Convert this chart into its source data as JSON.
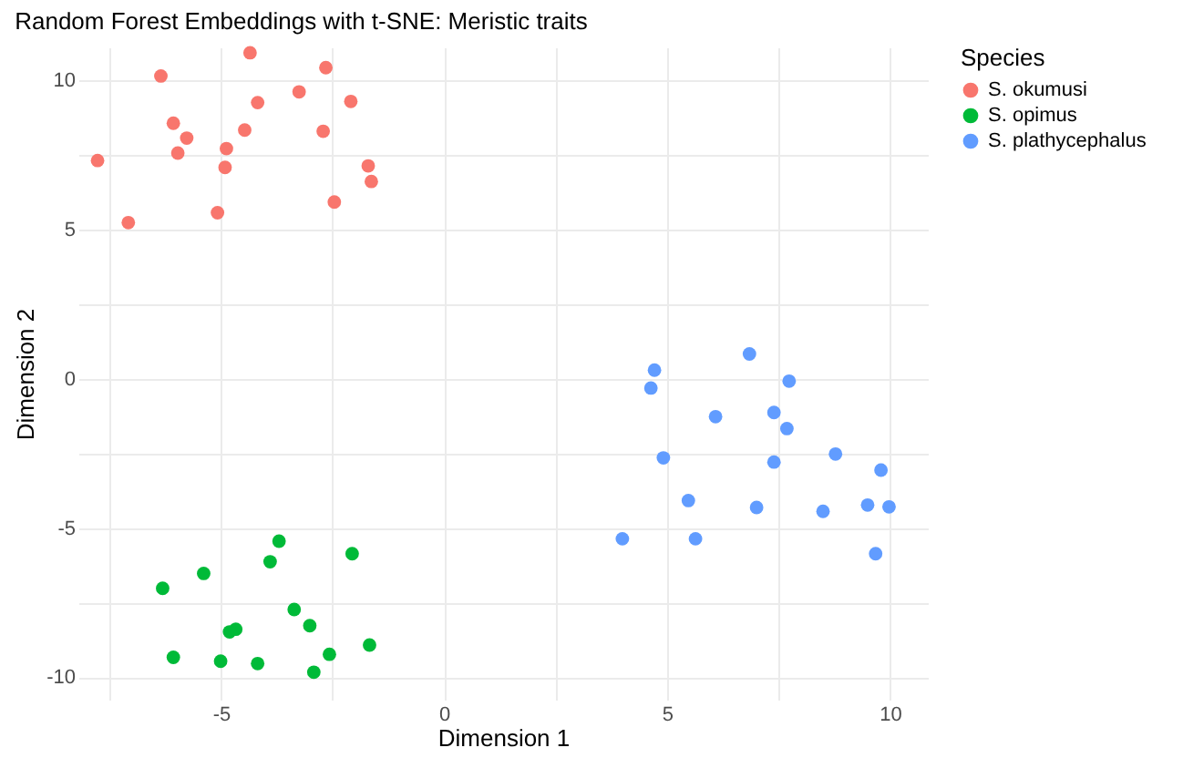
{
  "chart_data": {
    "type": "scatter",
    "title": "Random Forest Embeddings with t-SNE: Meristic traits",
    "xlabel": "Dimension 1",
    "ylabel": "Dimension 2",
    "legend_title": "Species",
    "legend": "right",
    "grid": true,
    "marker": "circle",
    "xlim": [
      -8.2,
      10.85
    ],
    "ylim": [
      -10.75,
      11.1
    ],
    "xticks": [
      {
        "value": -7.5,
        "label": null
      },
      -5,
      {
        "value": -2.5,
        "label": null
      },
      0,
      {
        "value": 2.5,
        "label": null
      },
      5,
      {
        "value": 7.5,
        "label": null
      },
      10
    ],
    "yticks": [
      {
        "value": -10,
        "label": "-10"
      },
      {
        "value": -7.5,
        "label": null
      },
      -5,
      {
        "value": -2.5,
        "label": null
      },
      0,
      {
        "value": 2.5,
        "label": null
      },
      5,
      {
        "value": 7.5,
        "label": null
      },
      10
    ],
    "series": [
      {
        "name": "S. okumusi",
        "color": "#f8766d",
        "x": [
          -7.77,
          -7.08,
          -6.35,
          -6.07,
          -5.77,
          -5.97,
          -5.08,
          -4.88,
          -4.91,
          -4.47,
          -4.35,
          -4.18,
          -3.25,
          -2.65,
          -2.71,
          -2.09,
          -2.46,
          -1.7,
          -1.63
        ],
        "values": [
          7.31,
          5.23,
          10.14,
          8.56,
          8.06,
          7.56,
          5.56,
          7.71,
          7.08,
          8.33,
          10.92,
          9.25,
          9.61,
          10.42,
          8.29,
          9.29,
          5.92,
          7.13,
          6.61
        ]
      },
      {
        "name": "S. opimus",
        "color": "#00ba38",
        "x": [
          -3.7,
          -2.06,
          -3.9,
          -5.39,
          -6.31,
          -3.36,
          -3.01,
          -4.67,
          -4.81,
          -1.67,
          -6.07,
          -5.01,
          -4.18,
          -2.57,
          -2.92
        ],
        "values": [
          -5.44,
          -5.86,
          -6.13,
          -6.52,
          -7.02,
          -7.73,
          -8.27,
          -8.39,
          -8.48,
          -8.92,
          -9.33,
          -9.46,
          -9.54,
          -9.23,
          -9.83
        ]
      },
      {
        "name": "S. plathycephalus",
        "color": "#619cff",
        "x": [
          6.85,
          4.72,
          4.64,
          7.74,
          6.09,
          7.4,
          7.69,
          4.92,
          7.4,
          8.78,
          9.8,
          5.48,
          7.01,
          8.5,
          9.5,
          9.98,
          4.0,
          5.64,
          9.68
        ],
        "values": [
          0.83,
          0.29,
          -0.31,
          -0.08,
          -1.27,
          -1.13,
          -1.67,
          -2.65,
          -2.79,
          -2.52,
          -3.06,
          -4.08,
          -4.31,
          -4.44,
          -4.23,
          -4.29,
          -5.36,
          -5.36,
          -5.86
        ]
      }
    ]
  }
}
